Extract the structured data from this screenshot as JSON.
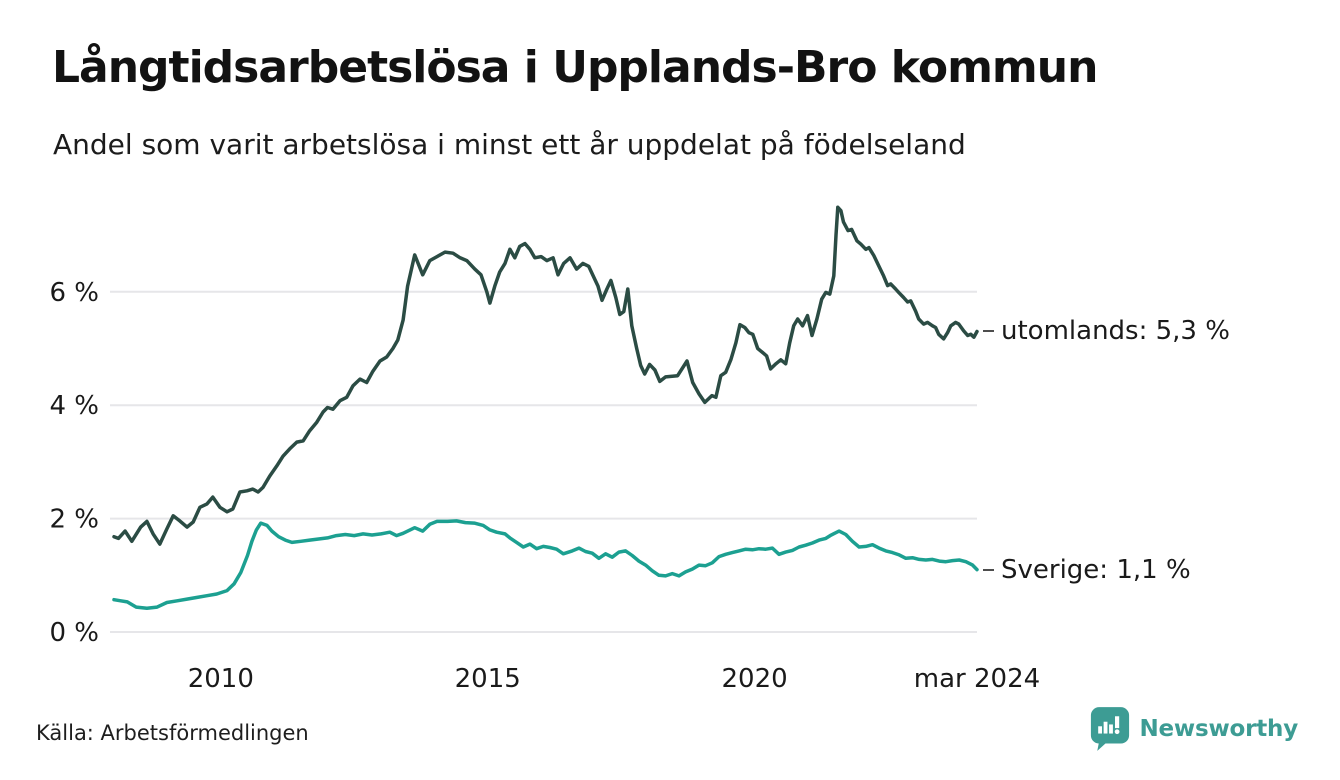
{
  "header": {
    "title": "Långtidsarbetslösa i Upplands-Bro kommun",
    "subtitle": "Andel som varit arbetslösa i minst ett år uppdelat på födelseland"
  },
  "footer": {
    "source": "Källa: Arbetsförmedlingen",
    "brand_name": "Newsworthy"
  },
  "colors": {
    "utomlands_line": "#2b4c44",
    "sverige_line": "#1ca091",
    "grid": "#e6e6e9",
    "text": "#1a1a1a",
    "brand_teal": "#3d9c94",
    "label_dash": "#4d4d4d"
  },
  "chart_data": {
    "type": "line",
    "x_unit": "month_index_from_2008-01",
    "x_start": "2008-01",
    "x_end": "2024-03",
    "ylim": [
      0,
      7.8
    ],
    "grid": "horizontal",
    "legend_position": "end-of-line-labels",
    "yticks": [
      {
        "v": 0,
        "label": "0 %"
      },
      {
        "v": 2,
        "label": "2 %"
      },
      {
        "v": 4,
        "label": "4 %"
      },
      {
        "v": 6,
        "label": "6 %"
      }
    ],
    "xticks": [
      {
        "i": 24,
        "label": "2010"
      },
      {
        "i": 84,
        "label": "2015"
      },
      {
        "i": 144,
        "label": "2020"
      },
      {
        "i": 194,
        "label": "mar 2024"
      }
    ],
    "series": [
      {
        "name": "utomlands",
        "label": "utomlands: 5,3 %",
        "last_value": 5.3,
        "color": "#2b4c44",
        "points": [
          [
            0,
            1.68
          ],
          [
            1,
            1.65
          ],
          [
            2.5,
            1.78
          ],
          [
            4,
            1.6
          ],
          [
            6,
            1.85
          ],
          [
            7.4,
            1.95
          ],
          [
            8.8,
            1.73
          ],
          [
            10.3,
            1.55
          ],
          [
            11.9,
            1.82
          ],
          [
            13.3,
            2.05
          ],
          [
            14.8,
            1.96
          ],
          [
            16.4,
            1.85
          ],
          [
            17.8,
            1.94
          ],
          [
            19.3,
            2.2
          ],
          [
            20.9,
            2.26
          ],
          [
            22.2,
            2.38
          ],
          [
            23.8,
            2.2
          ],
          [
            25.4,
            2.12
          ],
          [
            26.7,
            2.17
          ],
          [
            28.3,
            2.47
          ],
          [
            29.9,
            2.49
          ],
          [
            31.2,
            2.52
          ],
          [
            32.4,
            2.47
          ],
          [
            33.5,
            2.55
          ],
          [
            35,
            2.75
          ],
          [
            36.6,
            2.93
          ],
          [
            38,
            3.1
          ],
          [
            39.5,
            3.23
          ],
          [
            41.1,
            3.35
          ],
          [
            42.5,
            3.37
          ],
          [
            44,
            3.55
          ],
          [
            45.6,
            3.7
          ],
          [
            47,
            3.88
          ],
          [
            48,
            3.96
          ],
          [
            49.2,
            3.93
          ],
          [
            50.8,
            4.08
          ],
          [
            52.3,
            4.14
          ],
          [
            53.7,
            4.34
          ],
          [
            55.3,
            4.46
          ],
          [
            56.8,
            4.4
          ],
          [
            58.2,
            4.6
          ],
          [
            59.8,
            4.78
          ],
          [
            61.3,
            4.85
          ],
          [
            62.7,
            5.0
          ],
          [
            63.8,
            5.15
          ],
          [
            65,
            5.5
          ],
          [
            66,
            6.1
          ],
          [
            67.6,
            6.65
          ],
          [
            69.4,
            6.3
          ],
          [
            71,
            6.55
          ],
          [
            72.6,
            6.62
          ],
          [
            74.4,
            6.7
          ],
          [
            76.2,
            6.68
          ],
          [
            77.8,
            6.6
          ],
          [
            79.3,
            6.55
          ],
          [
            81.1,
            6.4
          ],
          [
            82.5,
            6.3
          ],
          [
            83.8,
            6.0
          ],
          [
            84.5,
            5.8
          ],
          [
            85.6,
            6.1
          ],
          [
            86.7,
            6.35
          ],
          [
            87.9,
            6.5
          ],
          [
            89,
            6.75
          ],
          [
            90.1,
            6.6
          ],
          [
            91.2,
            6.8
          ],
          [
            92.4,
            6.85
          ],
          [
            93.5,
            6.75
          ],
          [
            94.6,
            6.6
          ],
          [
            96,
            6.62
          ],
          [
            97.3,
            6.55
          ],
          [
            98.7,
            6.6
          ],
          [
            99.8,
            6.3
          ],
          [
            101.1,
            6.5
          ],
          [
            102.5,
            6.6
          ],
          [
            104,
            6.4
          ],
          [
            105.4,
            6.5
          ],
          [
            106.7,
            6.45
          ],
          [
            107.9,
            6.25
          ],
          [
            108.8,
            6.1
          ],
          [
            109.7,
            5.85
          ],
          [
            110.8,
            6.05
          ],
          [
            111.7,
            6.2
          ],
          [
            112.8,
            5.9
          ],
          [
            113.7,
            5.6
          ],
          [
            114.6,
            5.65
          ],
          [
            115.5,
            6.05
          ],
          [
            116.4,
            5.4
          ],
          [
            117.5,
            5.0
          ],
          [
            118.4,
            4.7
          ],
          [
            119.3,
            4.55
          ],
          [
            120.4,
            4.72
          ],
          [
            121.6,
            4.62
          ],
          [
            122.7,
            4.42
          ],
          [
            124,
            4.5
          ],
          [
            126.7,
            4.52
          ],
          [
            128.8,
            4.78
          ],
          [
            130.1,
            4.4
          ],
          [
            131.5,
            4.2
          ],
          [
            132.8,
            4.05
          ],
          [
            134.4,
            4.17
          ],
          [
            135.3,
            4.14
          ],
          [
            136.4,
            4.52
          ],
          [
            137.5,
            4.58
          ],
          [
            138.7,
            4.81
          ],
          [
            139.8,
            5.1
          ],
          [
            140.7,
            5.42
          ],
          [
            141.8,
            5.37
          ],
          [
            142.7,
            5.28
          ],
          [
            143.6,
            5.25
          ],
          [
            144.7,
            5.0
          ],
          [
            145.8,
            4.93
          ],
          [
            146.7,
            4.87
          ],
          [
            147.6,
            4.64
          ],
          [
            148.8,
            4.73
          ],
          [
            149.9,
            4.8
          ],
          [
            151,
            4.73
          ],
          [
            151.9,
            5.1
          ],
          [
            152.8,
            5.4
          ],
          [
            153.7,
            5.52
          ],
          [
            154.8,
            5.4
          ],
          [
            155.9,
            5.58
          ],
          [
            156.9,
            5.23
          ],
          [
            158,
            5.52
          ],
          [
            159.1,
            5.87
          ],
          [
            160,
            5.99
          ],
          [
            160.9,
            5.96
          ],
          [
            161.8,
            6.28
          ],
          [
            162.3,
            7.0
          ],
          [
            162.7,
            7.49
          ],
          [
            163.4,
            7.43
          ],
          [
            164,
            7.23
          ],
          [
            165,
            7.08
          ],
          [
            165.8,
            7.1
          ],
          [
            167,
            6.9
          ],
          [
            167.9,
            6.84
          ],
          [
            169,
            6.75
          ],
          [
            169.7,
            6.78
          ],
          [
            170.8,
            6.64
          ],
          [
            171.9,
            6.46
          ],
          [
            173,
            6.28
          ],
          [
            173.9,
            6.11
          ],
          [
            174.6,
            6.14
          ],
          [
            175.7,
            6.05
          ],
          [
            176.4,
            5.99
          ],
          [
            177.5,
            5.9
          ],
          [
            178.4,
            5.82
          ],
          [
            179.1,
            5.84
          ],
          [
            180.2,
            5.66
          ],
          [
            180.9,
            5.52
          ],
          [
            182,
            5.43
          ],
          [
            182.9,
            5.46
          ],
          [
            184,
            5.4
          ],
          [
            184.7,
            5.37
          ],
          [
            185.4,
            5.25
          ],
          [
            186.5,
            5.17
          ],
          [
            187.4,
            5.28
          ],
          [
            188.1,
            5.4
          ],
          [
            189.2,
            5.46
          ],
          [
            189.9,
            5.43
          ],
          [
            191,
            5.31
          ],
          [
            191.9,
            5.23
          ],
          [
            192.6,
            5.25
          ],
          [
            193.3,
            5.2
          ],
          [
            194,
            5.3
          ]
        ]
      },
      {
        "name": "Sverige",
        "label": "Sverige: 1,1 %",
        "last_value": 1.1,
        "color": "#1ca091",
        "points": [
          [
            0,
            0.57
          ],
          [
            1.5,
            0.55
          ],
          [
            3,
            0.53
          ],
          [
            5,
            0.44
          ],
          [
            7.4,
            0.42
          ],
          [
            9.7,
            0.44
          ],
          [
            11.9,
            0.52
          ],
          [
            14.2,
            0.55
          ],
          [
            16.4,
            0.58
          ],
          [
            18.7,
            0.61
          ],
          [
            20.9,
            0.64
          ],
          [
            23.1,
            0.67
          ],
          [
            25.4,
            0.73
          ],
          [
            27,
            0.85
          ],
          [
            28.5,
            1.05
          ],
          [
            30,
            1.35
          ],
          [
            31,
            1.6
          ],
          [
            32,
            1.8
          ],
          [
            33,
            1.92
          ],
          [
            34.4,
            1.88
          ],
          [
            35.5,
            1.78
          ],
          [
            37,
            1.68
          ],
          [
            38.5,
            1.62
          ],
          [
            40,
            1.58
          ],
          [
            42,
            1.6
          ],
          [
            44,
            1.62
          ],
          [
            46,
            1.64
          ],
          [
            48,
            1.66
          ],
          [
            50,
            1.7
          ],
          [
            52,
            1.72
          ],
          [
            54,
            1.7
          ],
          [
            56,
            1.73
          ],
          [
            58,
            1.71
          ],
          [
            60,
            1.73
          ],
          [
            62,
            1.76
          ],
          [
            63.5,
            1.7
          ],
          [
            65,
            1.74
          ],
          [
            67.6,
            1.84
          ],
          [
            69.4,
            1.78
          ],
          [
            71,
            1.9
          ],
          [
            72.6,
            1.95
          ],
          [
            75,
            1.95
          ],
          [
            77,
            1.96
          ],
          [
            79,
            1.93
          ],
          [
            81,
            1.92
          ],
          [
            83,
            1.88
          ],
          [
            84.5,
            1.8
          ],
          [
            86,
            1.76
          ],
          [
            87.9,
            1.73
          ],
          [
            89,
            1.66
          ],
          [
            90.5,
            1.58
          ],
          [
            92,
            1.5
          ],
          [
            93.5,
            1.55
          ],
          [
            95,
            1.47
          ],
          [
            96.5,
            1.51
          ],
          [
            98,
            1.49
          ],
          [
            99.5,
            1.46
          ],
          [
            101,
            1.38
          ],
          [
            103,
            1.43
          ],
          [
            104.5,
            1.48
          ],
          [
            106,
            1.42
          ],
          [
            107.5,
            1.39
          ],
          [
            109,
            1.3
          ],
          [
            110.5,
            1.38
          ],
          [
            112,
            1.32
          ],
          [
            113.5,
            1.41
          ],
          [
            115,
            1.43
          ],
          [
            116.5,
            1.35
          ],
          [
            118,
            1.25
          ],
          [
            119.5,
            1.18
          ],
          [
            121,
            1.08
          ],
          [
            122.5,
            1.0
          ],
          [
            124,
            0.99
          ],
          [
            125.5,
            1.03
          ],
          [
            127,
            0.99
          ],
          [
            128.5,
            1.06
          ],
          [
            130,
            1.11
          ],
          [
            131.5,
            1.18
          ],
          [
            133,
            1.17
          ],
          [
            134.5,
            1.22
          ],
          [
            136,
            1.33
          ],
          [
            137.5,
            1.37
          ],
          [
            139,
            1.4
          ],
          [
            140.5,
            1.43
          ],
          [
            142,
            1.46
          ],
          [
            143.5,
            1.45
          ],
          [
            145,
            1.47
          ],
          [
            146.5,
            1.46
          ],
          [
            148,
            1.48
          ],
          [
            149.5,
            1.37
          ],
          [
            151,
            1.41
          ],
          [
            152.5,
            1.44
          ],
          [
            154,
            1.5
          ],
          [
            155.5,
            1.53
          ],
          [
            157,
            1.57
          ],
          [
            158.5,
            1.62
          ],
          [
            160,
            1.65
          ],
          [
            161,
            1.7
          ],
          [
            162,
            1.74
          ],
          [
            163,
            1.78
          ],
          [
            164.5,
            1.72
          ],
          [
            166,
            1.6
          ],
          [
            167.5,
            1.5
          ],
          [
            169,
            1.51
          ],
          [
            170.5,
            1.54
          ],
          [
            172,
            1.48
          ],
          [
            173.5,
            1.43
          ],
          [
            175,
            1.4
          ],
          [
            176.5,
            1.36
          ],
          [
            178,
            1.3
          ],
          [
            179.5,
            1.31
          ],
          [
            181,
            1.28
          ],
          [
            182.5,
            1.27
          ],
          [
            184,
            1.28
          ],
          [
            185.5,
            1.25
          ],
          [
            187,
            1.24
          ],
          [
            188.5,
            1.26
          ],
          [
            190,
            1.27
          ],
          [
            191.5,
            1.24
          ],
          [
            193,
            1.18
          ],
          [
            194,
            1.1
          ]
        ]
      }
    ]
  }
}
